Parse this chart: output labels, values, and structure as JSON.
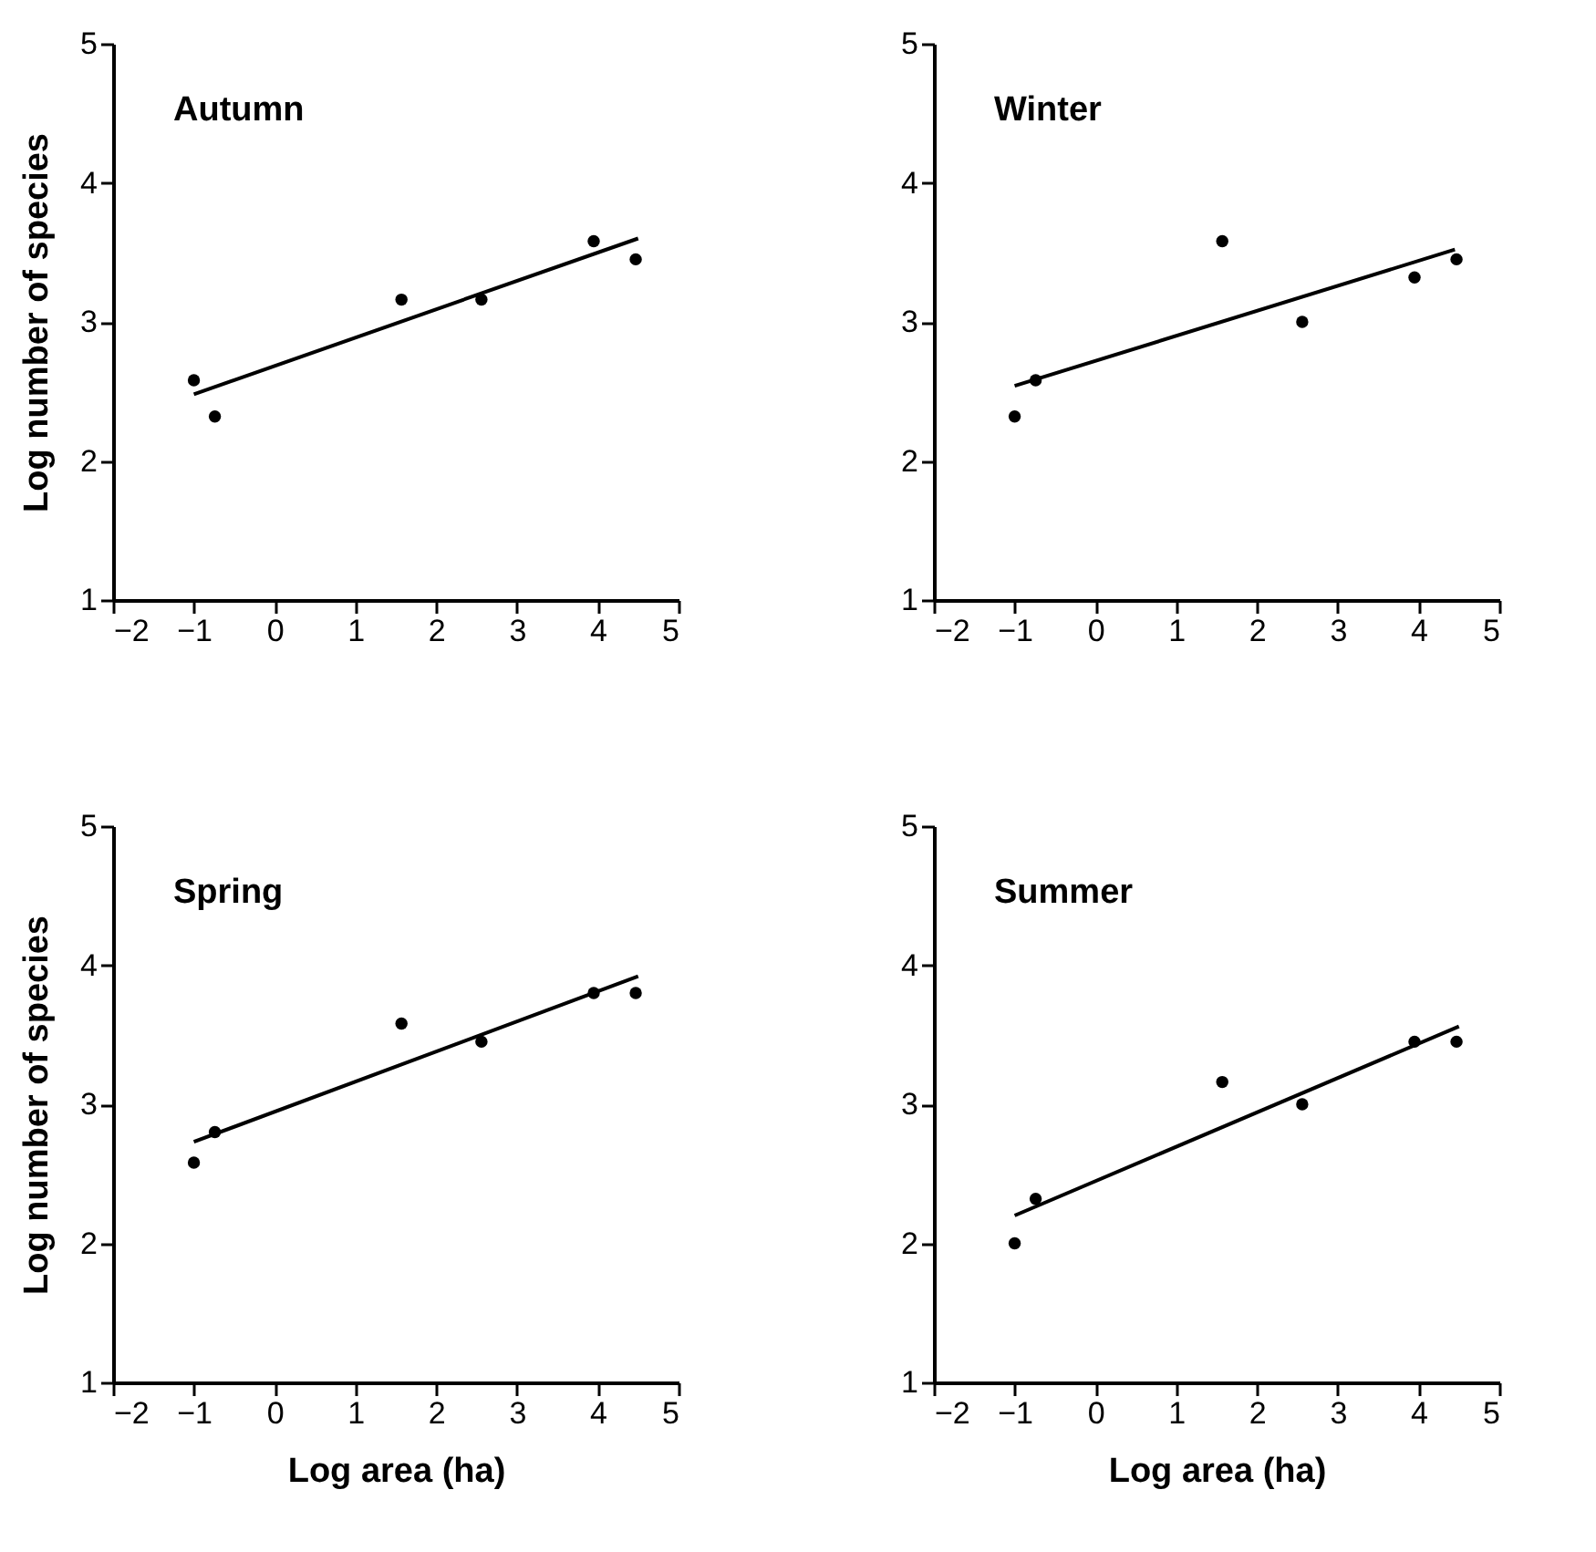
{
  "chart_data": [
    {
      "type": "scatter",
      "title": "Autumn",
      "ylabel": "Log number of species",
      "xlim": [
        -2,
        5
      ],
      "xticks": [
        -2,
        -1,
        0,
        1,
        2,
        3,
        4,
        5
      ],
      "ylim": [
        1,
        5
      ],
      "yticks": [
        1,
        2,
        3,
        4,
        5
      ],
      "series": [
        {
          "marker": "circle",
          "color": "#000000",
          "x": [
            -1,
            -0.74,
            1.57,
            2.56,
            3.95,
            4.47
          ],
          "values": [
            2.58,
            2.32,
            3.16,
            3.16,
            3.58,
            3.45
          ]
        },
        {
          "type": "line",
          "color": "#000000",
          "x": [
            -1,
            4.5
          ],
          "values": [
            2.48,
            3.6
          ]
        }
      ]
    },
    {
      "type": "scatter",
      "title": "Winter",
      "xlim": [
        -2,
        5
      ],
      "xticks": [
        -2,
        -1,
        0,
        1,
        2,
        3,
        4,
        5
      ],
      "ylim": [
        1,
        5
      ],
      "yticks": [
        1,
        2,
        3,
        4,
        5
      ],
      "series": [
        {
          "marker": "circle",
          "color": "#000000",
          "x": [
            -1,
            -0.74,
            1.57,
            2.56,
            3.95,
            4.47
          ],
          "values": [
            2.32,
            2.58,
            3.58,
            3.0,
            3.32,
            3.45
          ]
        },
        {
          "type": "line",
          "color": "#000000",
          "x": [
            -1,
            4.45
          ],
          "values": [
            2.54,
            3.52
          ]
        }
      ]
    },
    {
      "type": "scatter",
      "title": "Spring",
      "xlabel": "Log area (ha)",
      "ylabel": "Log number of species",
      "xlim": [
        -2,
        5
      ],
      "xticks": [
        -2,
        -1,
        0,
        1,
        2,
        3,
        4,
        5
      ],
      "ylim": [
        1,
        5
      ],
      "yticks": [
        1,
        2,
        3,
        4,
        5
      ],
      "series": [
        {
          "marker": "circle",
          "color": "#000000",
          "x": [
            -1,
            -0.74,
            1.57,
            2.56,
            3.95,
            4.47
          ],
          "values": [
            2.58,
            2.8,
            3.58,
            3.45,
            3.8,
            3.8
          ]
        },
        {
          "type": "line",
          "color": "#000000",
          "x": [
            -1,
            4.5
          ],
          "values": [
            2.73,
            3.92
          ]
        }
      ]
    },
    {
      "type": "scatter",
      "title": "Summer",
      "xlabel": "Log area (ha)",
      "xlim": [
        -2,
        5
      ],
      "xticks": [
        -2,
        -1,
        0,
        1,
        2,
        3,
        4,
        5
      ],
      "ylim": [
        1,
        5
      ],
      "yticks": [
        1,
        2,
        3,
        4,
        5
      ],
      "series": [
        {
          "marker": "circle",
          "color": "#000000",
          "x": [
            -1,
            -0.74,
            1.57,
            2.56,
            3.95,
            4.47
          ],
          "values": [
            2.0,
            2.32,
            3.16,
            3.0,
            3.45,
            3.45
          ]
        },
        {
          "type": "line",
          "color": "#000000",
          "x": [
            -1,
            4.5
          ],
          "values": [
            2.2,
            3.56
          ]
        }
      ]
    }
  ]
}
